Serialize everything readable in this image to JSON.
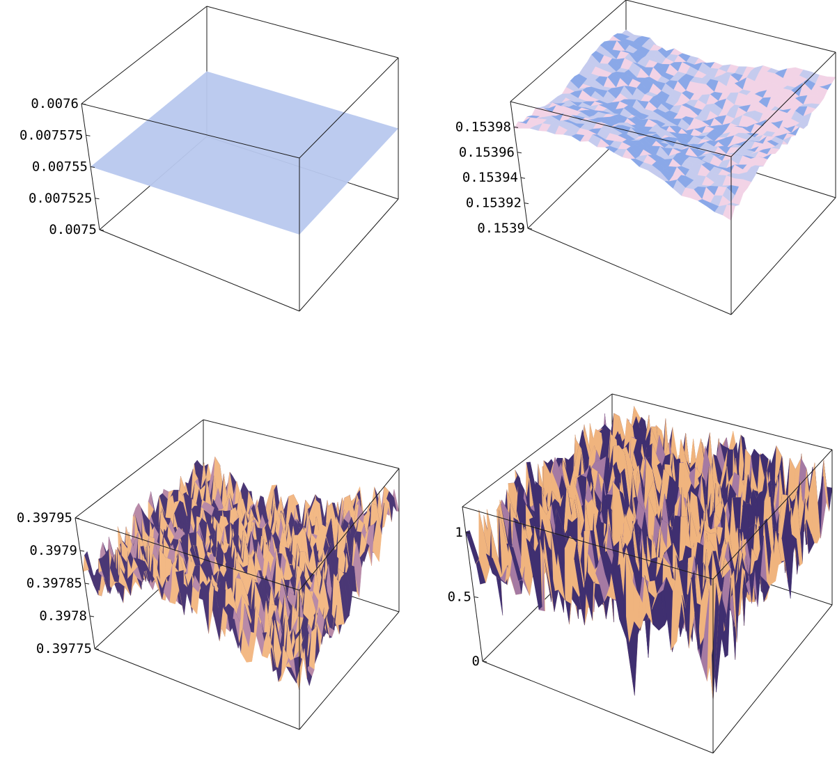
{
  "chart_data": [
    {
      "type": "surface",
      "zticks": [
        "0.0076",
        "0.007575",
        "0.00755",
        "0.007525",
        "0.0075"
      ],
      "zrange": [
        0.0075,
        0.0076
      ],
      "surface": "flat",
      "level": 0.00755,
      "colors": {
        "fill": "#b8c8ee"
      }
    },
    {
      "type": "surface",
      "zticks": [
        "0.15398",
        "0.15396",
        "0.15394",
        "0.15392",
        "0.1539"
      ],
      "zrange": [
        0.1539,
        0.154
      ],
      "surface": "smooth-rough",
      "colors": {
        "fill": "#c5cbee",
        "highlight": "#f2d3e6",
        "shade": "#8aa8e8"
      }
    },
    {
      "type": "surface",
      "zticks": [
        "0.39795",
        "0.3979",
        "0.39785",
        "0.3978",
        "0.39775"
      ],
      "zrange": [
        0.39775,
        0.39795
      ],
      "surface": "noisy",
      "colors": {
        "fill": "#b88aa8",
        "light": "#f3b985",
        "dark": "#4a3775"
      }
    },
    {
      "type": "surface",
      "zticks": [
        "1",
        "0.5",
        "0"
      ],
      "zrange": [
        0,
        1.2
      ],
      "surface": "very-noisy",
      "colors": {
        "fill": "#a57aa3",
        "light": "#f0b47e",
        "dark": "#3f2f70"
      }
    }
  ]
}
